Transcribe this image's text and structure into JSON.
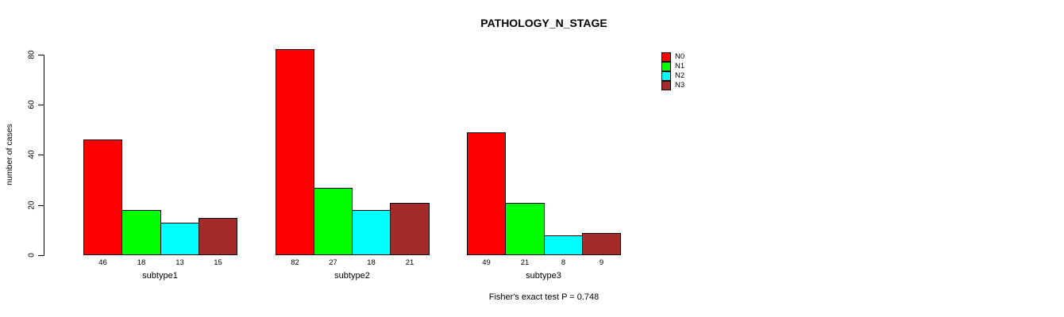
{
  "title": "PATHOLOGY_N_STAGE",
  "annotation": "Fisher's exact test P = 0.748",
  "y_axis": {
    "label": "number of cases",
    "ticks": [
      "0",
      "20",
      "40",
      "60",
      "80"
    ]
  },
  "legend": {
    "items": [
      {
        "label": "N0",
        "color": "#ff0000"
      },
      {
        "label": "N1",
        "color": "#00ff00"
      },
      {
        "label": "N2",
        "color": "#00ffff"
      },
      {
        "label": "N3",
        "color": "#a52a2a"
      }
    ]
  },
  "chart_data": {
    "type": "bar",
    "title": "PATHOLOGY_N_STAGE",
    "xlabel": "",
    "ylabel": "number of cases",
    "ylim": [
      0,
      80
    ],
    "yticks": [
      0,
      20,
      40,
      60,
      80
    ],
    "grid": false,
    "legend_position": "top-right",
    "categories": [
      "subtype1",
      "subtype2",
      "subtype3"
    ],
    "series": [
      {
        "name": "N0",
        "color": "#ff0000",
        "values": [
          46,
          82,
          49
        ]
      },
      {
        "name": "N1",
        "color": "#00ff00",
        "values": [
          18,
          27,
          21
        ]
      },
      {
        "name": "N2",
        "color": "#00ffff",
        "values": [
          13,
          18,
          8
        ]
      },
      {
        "name": "N3",
        "color": "#a52a2a",
        "values": [
          15,
          21,
          9
        ]
      }
    ],
    "bar_labels": [
      [
        46,
        18,
        13,
        15
      ],
      [
        82,
        27,
        18,
        21
      ],
      [
        49,
        21,
        8,
        9
      ]
    ],
    "annotation": "Fisher's exact test P = 0.748"
  }
}
